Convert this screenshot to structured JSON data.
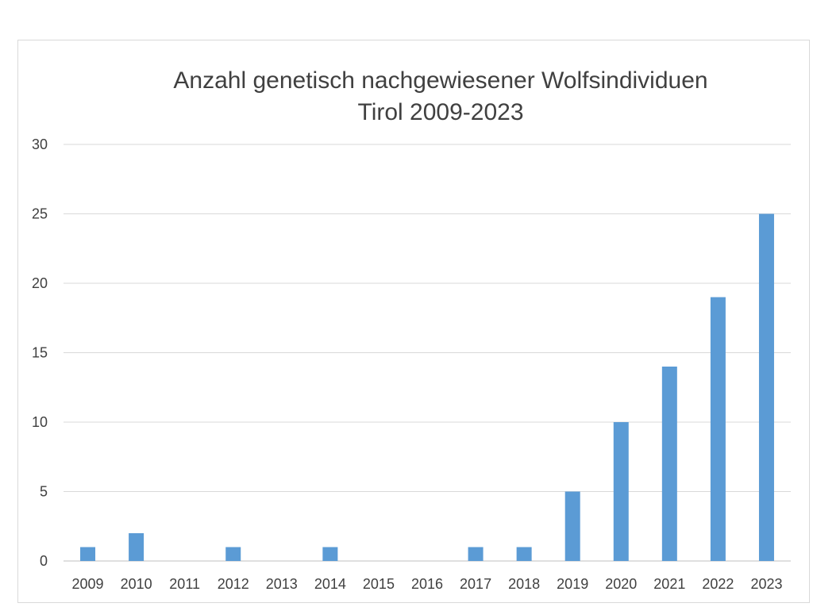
{
  "chart_data": {
    "type": "bar",
    "title": "Anzahl genetisch nachgewiesener Wolfsindividuen",
    "subtitle": "Tirol 2009-2023",
    "xlabel": "",
    "ylabel": "",
    "ylim": [
      0,
      30
    ],
    "yticks": [
      0,
      5,
      10,
      15,
      20,
      25,
      30
    ],
    "grid": true,
    "bar_color": "#5B9BD5",
    "categories": [
      "2009",
      "2010",
      "2011",
      "2012",
      "2013",
      "2014",
      "2015",
      "2016",
      "2017",
      "2018",
      "2019",
      "2020",
      "2021",
      "2022",
      "2023"
    ],
    "values": [
      1,
      2,
      0,
      1,
      0,
      1,
      0,
      0,
      1,
      1,
      5,
      10,
      14,
      19,
      25
    ]
  }
}
